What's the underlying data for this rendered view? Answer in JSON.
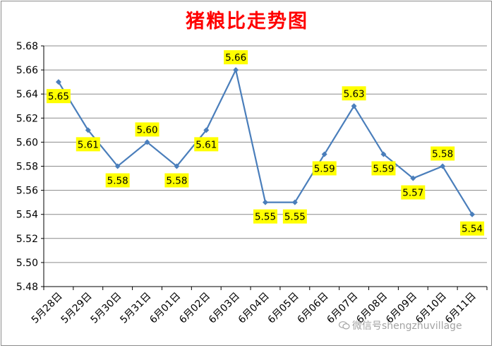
{
  "chart_data": {
    "type": "line",
    "title": "猪粮比走势图",
    "categories": [
      "5月28日",
      "5月29日",
      "5月30日",
      "5月31日",
      "6月01日",
      "6月02日",
      "6月03日",
      "6月04日",
      "6月05日",
      "6月06日",
      "6月07日",
      "6月08日",
      "6月09日",
      "6月10日",
      "6月11日"
    ],
    "series": [
      {
        "values": [
          5.65,
          5.61,
          5.58,
          5.6,
          5.58,
          5.61,
          5.66,
          5.55,
          5.55,
          5.59,
          5.63,
          5.59,
          5.57,
          5.58,
          5.54
        ]
      }
    ],
    "data_labels": [
      "5.65",
      "5.61",
      "5.58",
      "5.60",
      "5.58",
      "5.61",
      "5.66",
      "5.55",
      "5.55",
      "5.59",
      "5.63",
      "5.59",
      "5.57",
      "5.58",
      "5.54"
    ],
    "ylim": [
      5.48,
      5.68
    ],
    "yticks": [
      "5.48",
      "5.50",
      "5.52",
      "5.54",
      "5.56",
      "5.58",
      "5.60",
      "5.62",
      "5.64",
      "5.66",
      "5.68"
    ],
    "grid": true,
    "legend": "none",
    "colors": {
      "line": "#4a7ebb",
      "label_bg": "#ffff00",
      "grid": "#8c8c8c",
      "title": "#ff0000"
    }
  },
  "watermark": {
    "text": "微信号shengzhuvillage",
    "icon": "wechat-icon"
  }
}
